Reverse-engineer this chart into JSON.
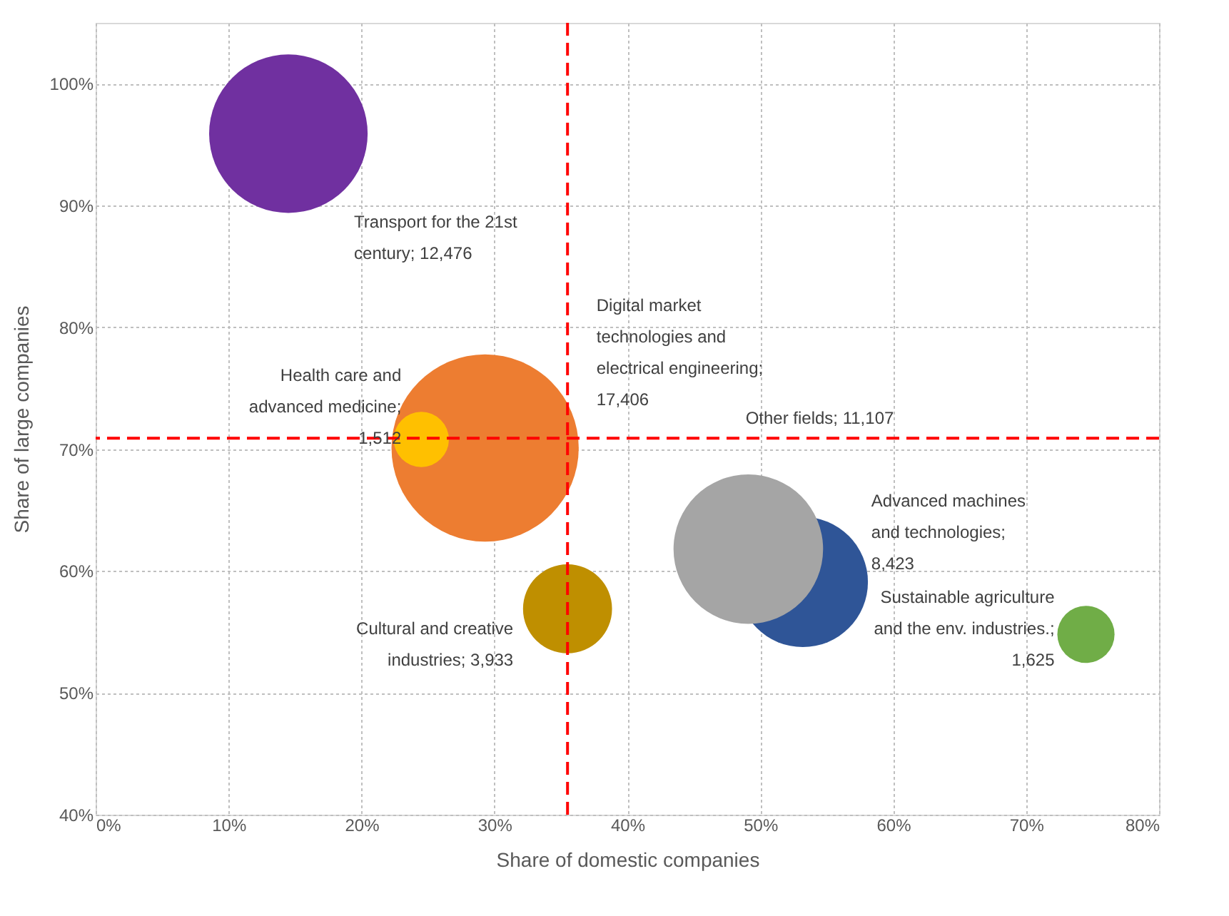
{
  "chart_data": {
    "type": "bubble",
    "xlabel": "Share of domestic companies",
    "ylabel": "Share of large companies",
    "xlim": [
      0,
      80
    ],
    "ylim": [
      40,
      105
    ],
    "xticks": [
      {
        "value": 0,
        "label": "0%"
      },
      {
        "value": 10,
        "label": "10%"
      },
      {
        "value": 20,
        "label": "20%"
      },
      {
        "value": 30,
        "label": "30%"
      },
      {
        "value": 40,
        "label": "40%"
      },
      {
        "value": 50,
        "label": "50%"
      },
      {
        "value": 60,
        "label": "60%"
      },
      {
        "value": 70,
        "label": "70%"
      },
      {
        "value": 80,
        "label": "80%"
      }
    ],
    "yticks": [
      {
        "value": 40,
        "label": "40%"
      },
      {
        "value": 50,
        "label": "50%"
      },
      {
        "value": 60,
        "label": "60%"
      },
      {
        "value": 70,
        "label": "70%"
      },
      {
        "value": 80,
        "label": "80%"
      },
      {
        "value": 90,
        "label": "90%"
      },
      {
        "value": 100,
        "label": "100%"
      }
    ],
    "grid": true,
    "legend": false,
    "series": [
      {
        "name": "Transport for the 21st century;",
        "color": "#7030a0",
        "x": [
          14.5
        ],
        "values": [
          95.9
        ],
        "sizes": [
          12476
        ],
        "value_labels": [
          "12,476"
        ]
      },
      {
        "name": "Digital market technologies and electrical engineering;",
        "color": "#ed7d31",
        "x": [
          29.3
        ],
        "values": [
          70.1
        ],
        "sizes": [
          17406
        ],
        "value_labels": [
          "17,406"
        ]
      },
      {
        "name": "Health care and advanced medicine;",
        "color": "#ffc000",
        "x": [
          24.5
        ],
        "values": [
          70.8
        ],
        "sizes": [
          1512
        ],
        "value_labels": [
          "1,512"
        ]
      },
      {
        "name": "Cultural and creative industries;",
        "color": "#bf8f00",
        "x": [
          35.5
        ],
        "values": [
          56.9
        ],
        "sizes": [
          3933
        ],
        "value_labels": [
          "3,933"
        ]
      },
      {
        "name": "Advanced machines and technologies;",
        "color": "#2f5597",
        "x": [
          53.2
        ],
        "values": [
          59.1
        ],
        "sizes": [
          8423
        ],
        "value_labels": [
          "8,423"
        ]
      },
      {
        "name": "Other fields;",
        "color": "#a5a5a5",
        "x": [
          49.1
        ],
        "values": [
          61.8
        ],
        "sizes": [
          11107
        ],
        "value_labels": [
          "11,107"
        ]
      },
      {
        "name": "Sustainable agriculture and the env. industries.;",
        "color": "#70ad47",
        "x": [
          74.5
        ],
        "values": [
          54.8
        ],
        "sizes": [
          1625
        ],
        "value_labels": [
          "1,625"
        ]
      }
    ],
    "ref_lines": [
      {
        "axis": "x",
        "value": 35.5,
        "color": "#ff0000",
        "line_style": "dashed"
      },
      {
        "axis": "y",
        "value": 70.9,
        "color": "#ff0000",
        "line_style": "dashed"
      }
    ]
  }
}
